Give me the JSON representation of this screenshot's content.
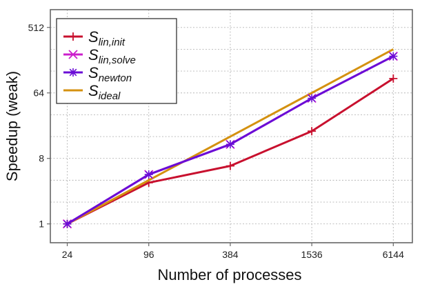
{
  "chart_data": {
    "type": "line",
    "title": "",
    "xlabel": "Number of processes",
    "ylabel": "Speedup (weak)",
    "x_scale": "log2",
    "y_scale": "log2",
    "x": [
      24,
      96,
      384,
      1536,
      6144
    ],
    "x_tick_labels": [
      "24",
      "96",
      "384",
      "1536",
      "6144"
    ],
    "xlim": [
      18,
      8500
    ],
    "y_ticks": [
      1,
      8,
      64,
      512
    ],
    "y_tick_labels": [
      "1",
      "8",
      "64",
      "512"
    ],
    "ylim": [
      0.55,
      900
    ],
    "grid": true,
    "legend_position": "top-left",
    "series": [
      {
        "name": "S_lin,init",
        "label_main": "S",
        "label_sub": "lin,init",
        "color": "#c8102e",
        "marker": "plus",
        "values": [
          1,
          3.7,
          6.3,
          19,
          101
        ]
      },
      {
        "name": "S_lin,solve",
        "label_main": "S",
        "label_sub": "lin,solve",
        "color": "#cc1fcc",
        "marker": "x",
        "values": [
          1,
          4.8,
          12.5,
          54,
          205
        ]
      },
      {
        "name": "S_newton",
        "label_main": "S",
        "label_sub": "newton",
        "color": "#6a0dd6",
        "marker": "star",
        "values": [
          1,
          4.8,
          12.5,
          54,
          205
        ]
      },
      {
        "name": "S_ideal",
        "label_main": "S",
        "label_sub": "ideal",
        "color": "#d4910f",
        "marker": "none",
        "values": [
          1,
          4,
          16,
          64,
          256
        ]
      }
    ]
  }
}
